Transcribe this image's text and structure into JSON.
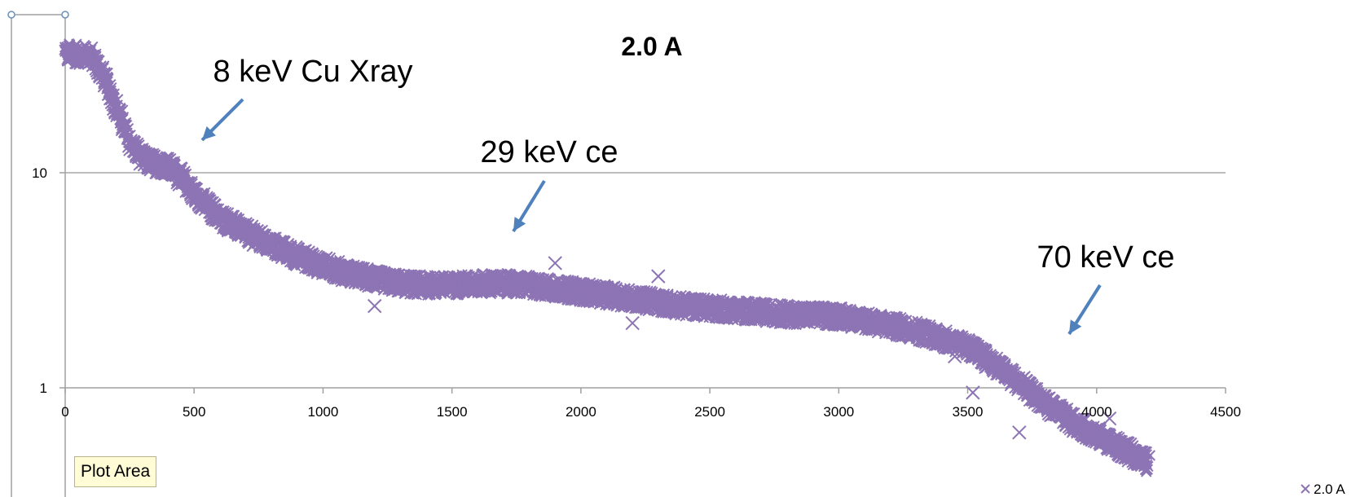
{
  "chart_data": {
    "type": "scatter",
    "title": "2.0 A",
    "xlabel": "",
    "ylabel": "",
    "xlim": [
      0,
      4500
    ],
    "ylim": [
      0.5,
      40
    ],
    "y_scale": "log",
    "x_ticks": [
      "0",
      "500",
      "1000",
      "1500",
      "2000",
      "2500",
      "3000",
      "3500",
      "4000",
      "4500"
    ],
    "y_ticks": [
      "1",
      "10"
    ],
    "grid": "horizontal",
    "legend": "bottom-right",
    "series": [
      {
        "name": "2.0 A",
        "marker": "x",
        "color": "#8d74b4",
        "x": [
          0,
          100,
          150,
          200,
          250,
          300,
          350,
          400,
          450,
          500,
          600,
          700,
          800,
          900,
          1000,
          1100,
          1200,
          1300,
          1400,
          1500,
          1600,
          1700,
          1800,
          1900,
          2000,
          2200,
          2400,
          2600,
          2800,
          3000,
          3100,
          3200,
          3300,
          3400,
          3500,
          3600,
          3700,
          3800,
          3900,
          4000,
          4100,
          4200
        ],
        "y": [
          36,
          35,
          28,
          20,
          14,
          11.5,
          11,
          10.8,
          9.5,
          8,
          6.2,
          5.3,
          4.6,
          4.1,
          3.7,
          3.4,
          3.2,
          3.05,
          3.0,
          3.0,
          3.05,
          3.05,
          3.0,
          2.9,
          2.8,
          2.6,
          2.4,
          2.3,
          2.2,
          2.15,
          2.05,
          1.95,
          1.85,
          1.7,
          1.55,
          1.3,
          1.05,
          0.85,
          0.7,
          0.6,
          0.52,
          0.45
        ]
      }
    ],
    "annotations": [
      {
        "text": "8 keV Cu Xray",
        "x": 500,
        "y": 12
      },
      {
        "text": "29 keV ce",
        "x": 1720,
        "y": 4.5
      },
      {
        "text": "70 keV ce",
        "x": 3850,
        "y": 1.7
      }
    ]
  },
  "tooltip": {
    "label": "Plot Area"
  }
}
